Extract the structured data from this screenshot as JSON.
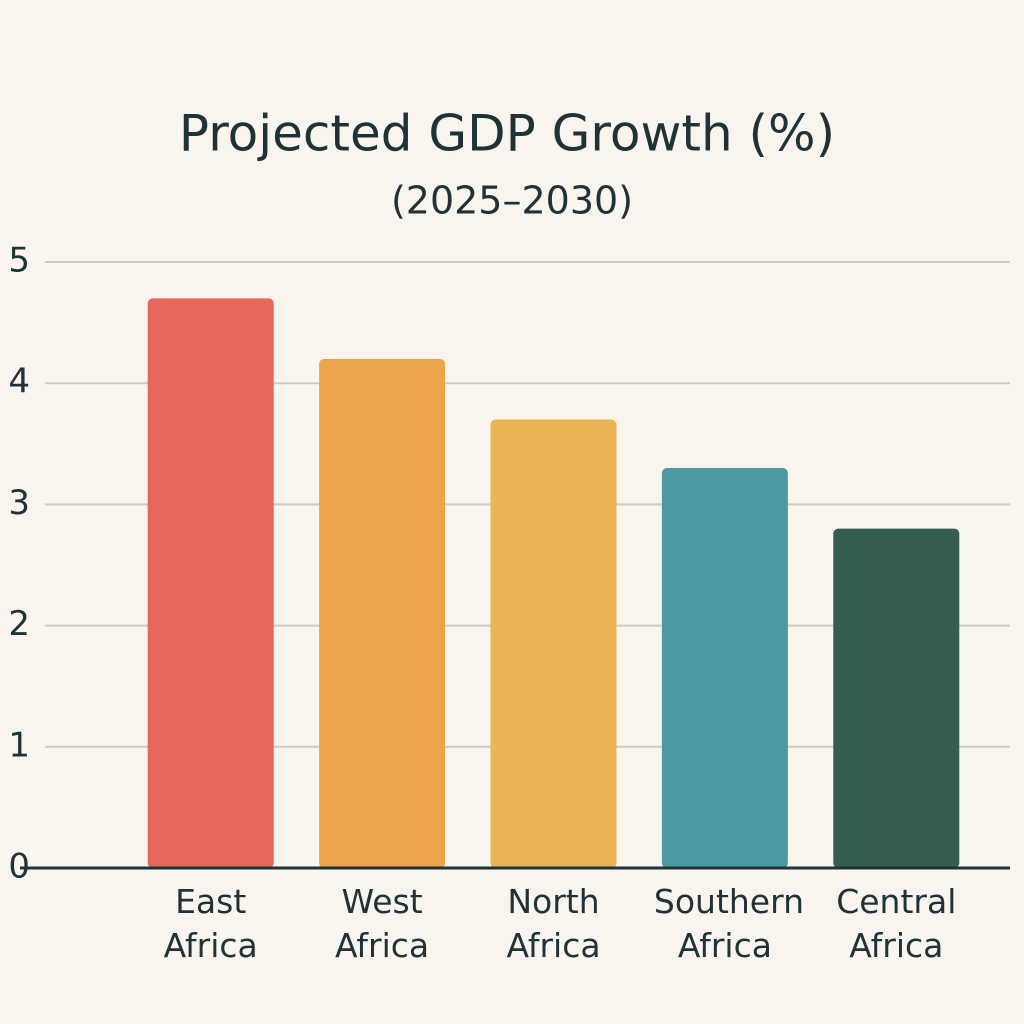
{
  "chart_data": {
    "type": "bar",
    "title": "Projected GDP Growth (%)",
    "subtitle": "(2025–2030)",
    "categories": [
      "East Africa",
      "West Africa",
      "North Africa",
      "Southern Africa",
      "Central Africa"
    ],
    "values": [
      4.7,
      4.2,
      3.7,
      3.3,
      2.8
    ],
    "colors": [
      "#e5675c",
      "#eba447",
      "#ecb454",
      "#4b9aa0",
      "#335e51"
    ],
    "ylim": [
      0,
      5
    ],
    "yticks": [
      0,
      1,
      2,
      3,
      4,
      5
    ],
    "grid": true
  }
}
